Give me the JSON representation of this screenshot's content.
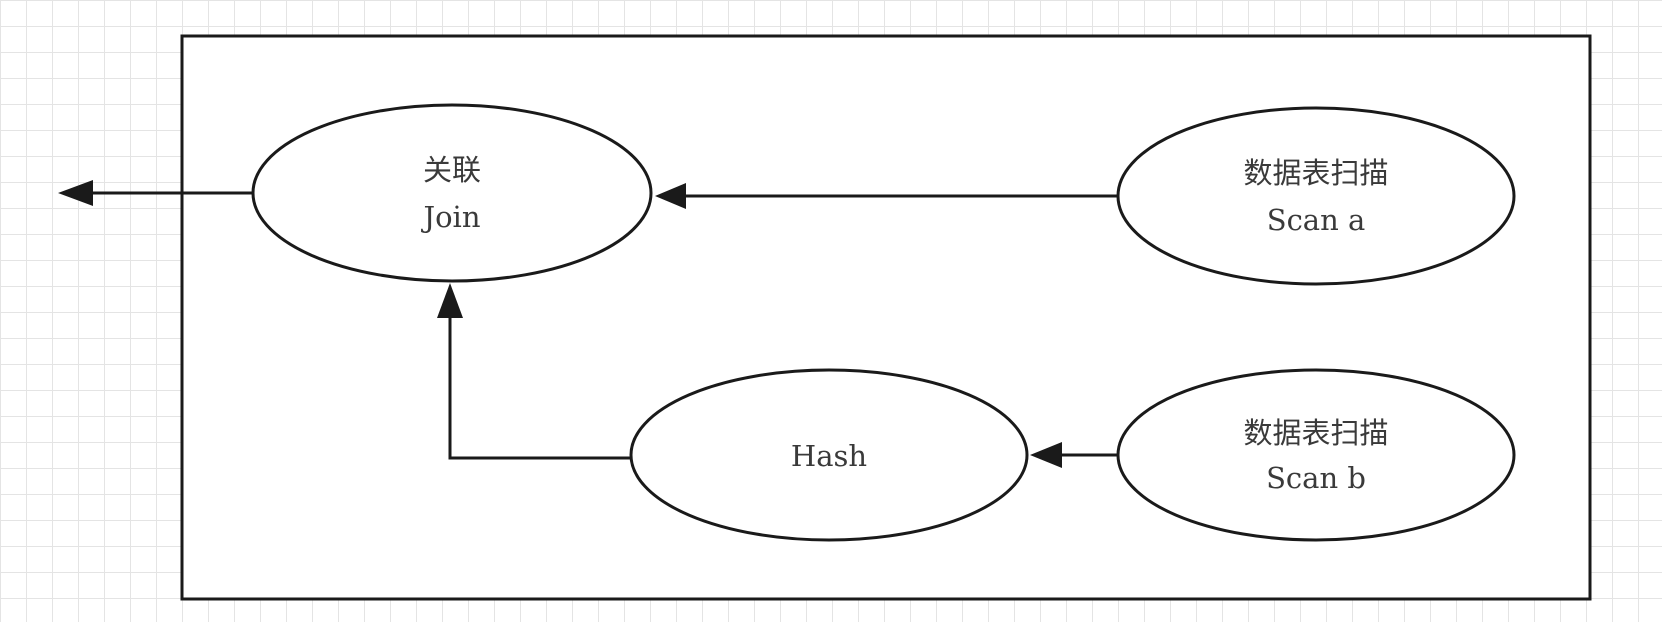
{
  "nodes": {
    "join": {
      "line1": "关联",
      "line2": "Join"
    },
    "scan_a": {
      "line1": "数据表扫描",
      "line2": "Scan a"
    },
    "hash": {
      "line1": "Hash"
    },
    "scan_b": {
      "line1": "数据表扫描",
      "line2": "Scan b"
    }
  },
  "edges": [
    {
      "from": "scan_a",
      "to": "join"
    },
    {
      "from": "scan_b",
      "to": "hash"
    },
    {
      "from": "hash",
      "to": "join"
    },
    {
      "from": "join",
      "to": "output"
    }
  ],
  "colors": {
    "stroke": "#1a1a1a",
    "grid": "#e4e4e4",
    "text": "#3a3a3a",
    "background": "#ffffff"
  }
}
